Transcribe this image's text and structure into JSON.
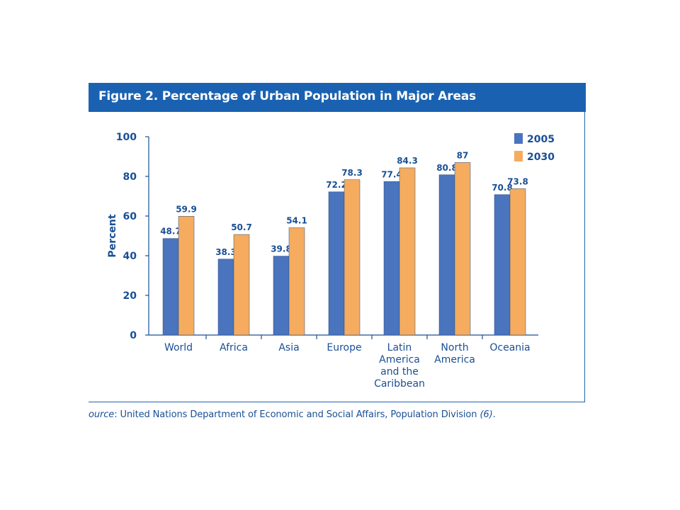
{
  "figure": {
    "title": "Figure 2.  Percentage of Urban Population in Major Areas"
  },
  "source": {
    "label": "ource",
    "text": ": United Nations Department of Economic and Social Affairs, Population Division ",
    "ref": "(6)",
    "end": "."
  },
  "colors": {
    "title_bar": "#1a62b1",
    "text_blue": "#1a4f95",
    "series_2005": "#4a74bd",
    "series_2030": "#f5ac5e"
  },
  "chart_data": {
    "type": "bar",
    "title": "Figure 2.  Percentage of Urban Population in Major Areas",
    "xlabel": "",
    "ylabel": "Percent",
    "ylim": [
      0,
      100
    ],
    "yticks": [
      0,
      20,
      40,
      60,
      80,
      100
    ],
    "grid": false,
    "legend_position": "top-right",
    "categories": [
      [
        "World"
      ],
      [
        "Africa"
      ],
      [
        "Asia"
      ],
      [
        "Europe"
      ],
      [
        "Latin",
        "America",
        "and the",
        "Caribbean"
      ],
      [
        "North",
        "America"
      ],
      [
        "Oceania"
      ]
    ],
    "series": [
      {
        "name": "2005",
        "color": "#4a74bd",
        "values": [
          48.7,
          38.3,
          39.8,
          72.2,
          77.4,
          80.8,
          70.8
        ],
        "labels": [
          "48.7",
          "38.3",
          "39.8",
          "72.2",
          "77.4",
          "80.8",
          "70.8"
        ]
      },
      {
        "name": "2030",
        "color": "#f5ac5e",
        "values": [
          59.9,
          50.7,
          54.1,
          78.3,
          84.3,
          87,
          73.8
        ],
        "labels": [
          "59.9",
          "50.7",
          "54.1",
          "78.3",
          "84.3",
          "87",
          "73.8"
        ]
      }
    ]
  }
}
